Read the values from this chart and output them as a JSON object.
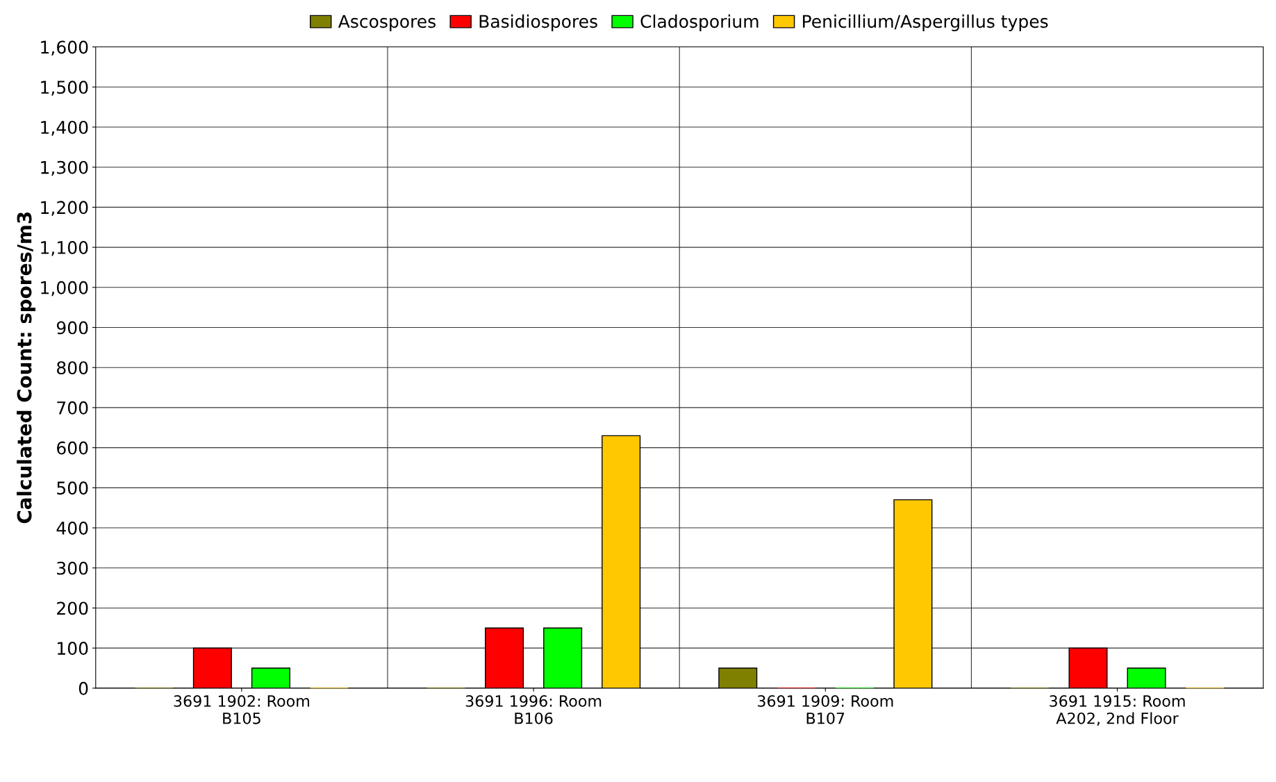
{
  "chart_data": {
    "type": "bar",
    "ylabel": "Calculated Count: spores/m3",
    "categories": [
      "3691 1902: Room\nB105",
      "3691 1996: Room\nB106",
      "3691 1909: Room\nB107",
      "3691 1915: Room\nA202, 2nd Floor"
    ],
    "series": [
      {
        "name": "Ascospores",
        "color": "#808000",
        "values": [
          0,
          0,
          50,
          0
        ]
      },
      {
        "name": "Basidiospores",
        "color": "#ff0000",
        "values": [
          100,
          150,
          0,
          100
        ]
      },
      {
        "name": "Cladosporium",
        "color": "#00ff00",
        "values": [
          50,
          150,
          0,
          50
        ]
      },
      {
        "name": "Penicillium/Aspergillus types",
        "color": "#ffc800",
        "values": [
          0,
          630,
          470,
          0
        ]
      }
    ],
    "ylim": [
      0,
      1600
    ],
    "yticks": [
      0,
      {
        "value": 100,
        "label": "100"
      },
      200,
      300,
      400,
      500,
      600,
      700,
      800,
      900,
      {
        "value": 1000,
        "label": "1,000"
      },
      {
        "value": 1100,
        "label": "1,100"
      },
      {
        "value": 1200,
        "label": "1,200"
      },
      {
        "value": 1300,
        "label": "1,300"
      },
      {
        "value": 1400,
        "label": "1,400"
      },
      {
        "value": 1500,
        "label": "1,500"
      },
      {
        "value": 1600,
        "label": "1,600"
      }
    ],
    "grid": "y",
    "legend": "top"
  }
}
